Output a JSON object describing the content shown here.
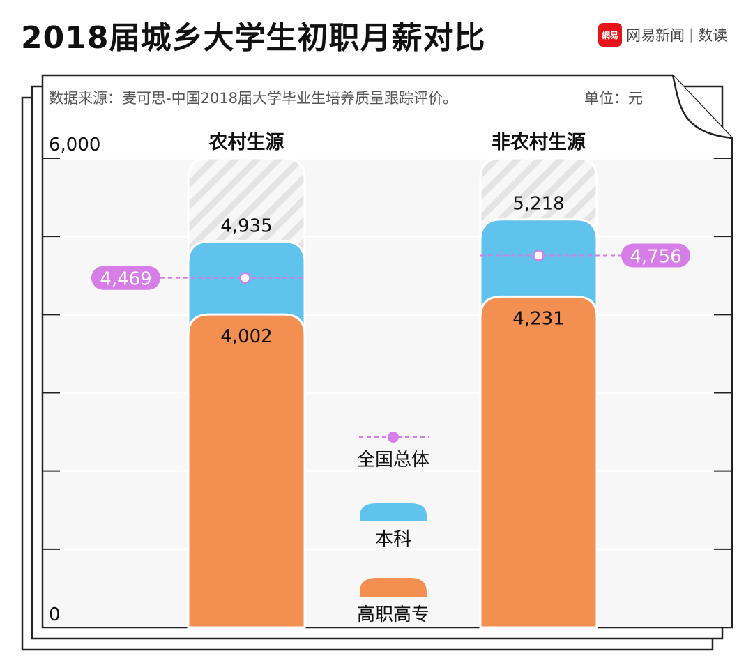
{
  "title": "2018届城乡大学生初职月薪对比",
  "logo": {
    "badge": "網易",
    "text": "网易新闻",
    "section": "数读"
  },
  "source": "数据来源：麦可思-中国2018届大学毕业生培养质量跟踪评价。",
  "unit": "单位：元",
  "chart_data": {
    "type": "bar",
    "categories": [
      "农村生源",
      "非农村生源"
    ],
    "series": [
      {
        "name": "本科",
        "values": [
          4935,
          5218
        ],
        "labels": [
          "4,935",
          "5,218"
        ],
        "color": "#5fc3ee"
      },
      {
        "name": "高职高专",
        "values": [
          4002,
          4231
        ],
        "labels": [
          "4,002",
          "4,231"
        ],
        "color": "#f39051"
      }
    ],
    "reference": {
      "name": "全国总体",
      "values": [
        4469,
        4756
      ],
      "labels": [
        "4,469",
        "4,756"
      ],
      "color": "#d77de8"
    },
    "ylim": [
      0,
      6000
    ],
    "yticks": [
      0,
      1000,
      2000,
      3000,
      4000,
      5000,
      6000
    ],
    "ytick_labels_shown": {
      "top": "6,000",
      "bottom": "0"
    },
    "grid": true,
    "legend": "center"
  }
}
